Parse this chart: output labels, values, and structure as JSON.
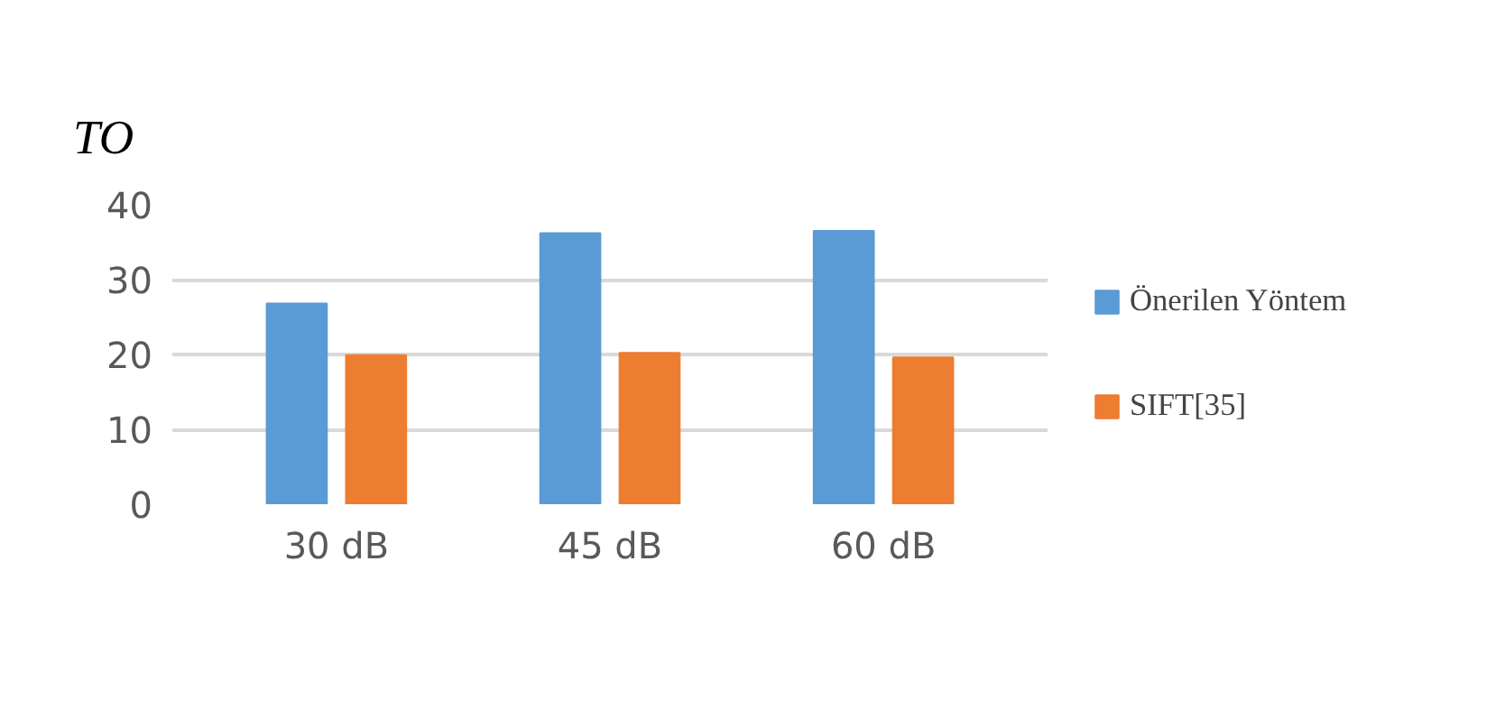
{
  "chart_data": {
    "type": "bar",
    "ylabel": "TO",
    "categories": [
      "30 dB",
      "45 dB",
      "60 dB"
    ],
    "series": [
      {
        "name": "Önerilen Yöntem",
        "color": "#5b9bd5",
        "values": [
          26.8,
          36.2,
          36.5
        ]
      },
      {
        "name": "SIFT[35]",
        "color": "#ed7d31",
        "values": [
          19.9,
          20.2,
          19.6
        ]
      }
    ],
    "ylim": [
      0,
      40
    ],
    "yticks": [
      0,
      10,
      20,
      30,
      40
    ],
    "grid": "y",
    "legend": "right"
  }
}
